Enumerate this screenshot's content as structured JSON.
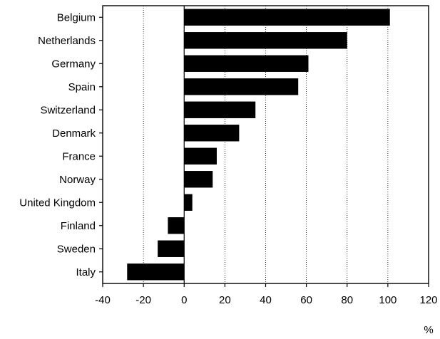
{
  "chart_data": {
    "type": "bar",
    "orientation": "horizontal",
    "categories": [
      "Belgium",
      "Netherlands",
      "Germany",
      "Spain",
      "Switzerland",
      "Denmark",
      "France",
      "Norway",
      "United Kingdom",
      "Finland",
      "Sweden",
      "Italy"
    ],
    "values": [
      101,
      80,
      61,
      56,
      35,
      27,
      16,
      14,
      4,
      -8,
      -13,
      -28
    ],
    "xlim": [
      -40,
      120
    ],
    "xticks": [
      "-40",
      "-20",
      "0",
      "20",
      "40",
      "60",
      "80",
      "100",
      "120"
    ],
    "xunit": "%",
    "grid": "vertical dotted lines at x ticks",
    "bar_color": "#000000"
  }
}
